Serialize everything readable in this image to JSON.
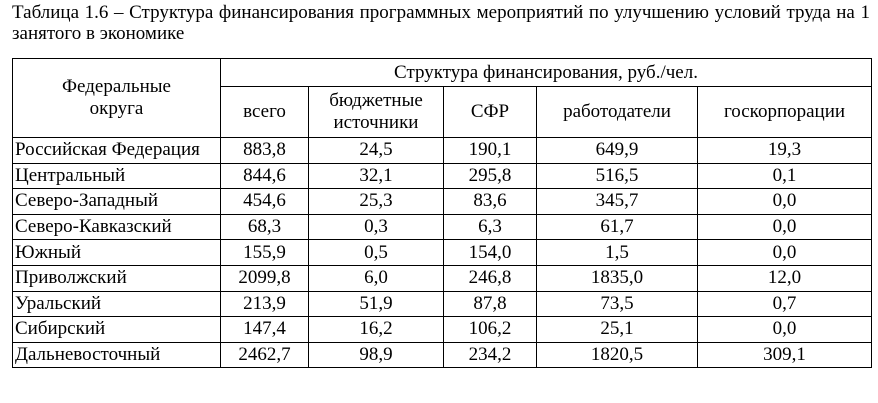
{
  "title": "Таблица 1.6 – Структура финансирования программных мероприятий по улучшению условий труда на 1 занятого в экономике",
  "table": {
    "header": {
      "region": "Федеральные округа",
      "group": "Структура финансирования, руб./чел.",
      "columns": [
        "всего",
        "бюджетные источники",
        "СФР",
        "работодатели",
        "госкорпорации"
      ]
    },
    "rows": [
      [
        "Российская Федерация",
        "883,8",
        "24,5",
        "190,1",
        "649,9",
        "19,3"
      ],
      [
        "Центральный",
        "844,6",
        "32,1",
        "295,8",
        "516,5",
        "0,1"
      ],
      [
        "Северо-Западный",
        "454,6",
        "25,3",
        "83,6",
        "345,7",
        "0,0"
      ],
      [
        "Северо-Кавказский",
        "68,3",
        "0,3",
        "6,3",
        "61,7",
        "0,0"
      ],
      [
        "Южный",
        "155,9",
        "0,5",
        "154,0",
        "1,5",
        "0,0"
      ],
      [
        "Приволжский",
        "2099,8",
        "6,0",
        "246,8",
        "1835,0",
        "12,0"
      ],
      [
        "Уральский",
        "213,9",
        "51,9",
        "87,8",
        "73,5",
        "0,7"
      ],
      [
        "Сибирский",
        "147,4",
        "16,2",
        "106,2",
        "25,1",
        "0,0"
      ],
      [
        "Дальневосточный",
        "2462,7",
        "98,9",
        "234,2",
        "1820,5",
        "309,1"
      ]
    ]
  }
}
